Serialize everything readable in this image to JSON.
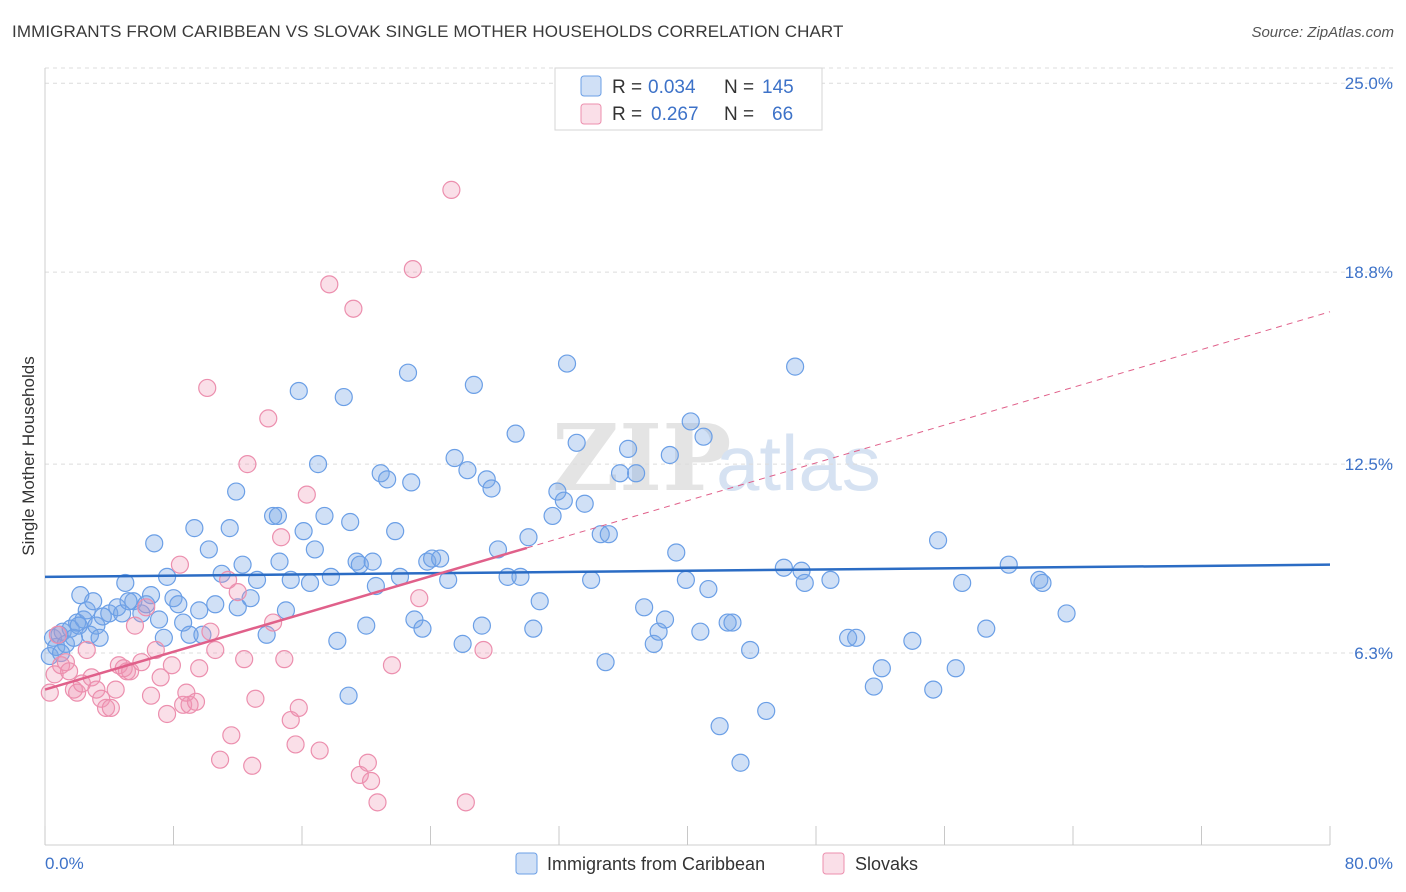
{
  "header": {
    "title": "IMMIGRANTS FROM CARIBBEAN VS SLOVAK SINGLE MOTHER HOUSEHOLDS CORRELATION CHART",
    "source": "Source: ZipAtlas.com"
  },
  "watermark": {
    "zip": "ZIP",
    "atlas": "atlas"
  },
  "legend": {
    "rows": [
      {
        "r_label": "R =",
        "r_value": "0.034",
        "n_label": "N =",
        "n_value": "145",
        "color": "#6b9fe6"
      },
      {
        "r_label": "R =",
        "r_value": "0.267",
        "n_label": "N =",
        "n_value": "66",
        "color": "#ec8fae"
      }
    ]
  },
  "bottom_legend": {
    "items": [
      {
        "label": "Immigrants from Caribbean",
        "color": "#6b9fe6"
      },
      {
        "label": "Slovaks",
        "color": "#ec8fae"
      }
    ]
  },
  "colors": {
    "blue_fill": "rgba(120,165,230,0.35)",
    "blue_stroke": "#6b9fe6",
    "blue_line": "#2b6cc4",
    "pink_fill": "rgba(240,150,180,0.30)",
    "pink_stroke": "#ec8fae",
    "pink_line": "#e0608a",
    "grid": "#dcdcdc",
    "tick_text": "#3d72c8"
  },
  "chart_data": {
    "type": "scatter",
    "title": "IMMIGRANTS FROM CARIBBEAN VS SLOVAK SINGLE MOTHER HOUSEHOLDS CORRELATION CHART",
    "xlabel": "",
    "ylabel": "Single Mother Households",
    "xlim": [
      0,
      80
    ],
    "ylim": [
      0,
      25.5
    ],
    "x_tick_labels": [
      "0.0%",
      "80.0%"
    ],
    "y_ticks": [
      6.3,
      12.5,
      18.8,
      25.0
    ],
    "y_tick_labels": [
      "6.3%",
      "12.5%",
      "18.8%",
      "25.0%"
    ],
    "grid": true,
    "legend_position": "top-center",
    "series": [
      {
        "name": "Immigrants from Caribbean",
        "trend": {
          "x": [
            0,
            80
          ],
          "y": [
            8.8,
            9.2
          ],
          "style": "solid"
        },
        "points": [
          [
            0.3,
            6.2
          ],
          [
            0.5,
            6.8
          ],
          [
            0.7,
            6.5
          ],
          [
            0.9,
            6.9
          ],
          [
            1.1,
            7.0
          ],
          [
            1.3,
            6.6
          ],
          [
            1.6,
            7.1
          ],
          [
            1.8,
            6.8
          ],
          [
            2.0,
            7.3
          ],
          [
            2.2,
            8.2
          ],
          [
            2.4,
            7.4
          ],
          [
            2.6,
            7.7
          ],
          [
            2.8,
            6.9
          ],
          [
            3.0,
            8.0
          ],
          [
            3.2,
            7.2
          ],
          [
            3.4,
            6.8
          ],
          [
            4.0,
            7.6
          ],
          [
            4.5,
            7.8
          ],
          [
            5.0,
            8.6
          ],
          [
            5.5,
            8.0
          ],
          [
            6.0,
            7.6
          ],
          [
            6.3,
            7.9
          ],
          [
            6.8,
            9.9
          ],
          [
            7.1,
            7.4
          ],
          [
            7.4,
            6.8
          ],
          [
            7.6,
            8.8
          ],
          [
            8.0,
            8.1
          ],
          [
            8.3,
            7.9
          ],
          [
            8.6,
            7.3
          ],
          [
            9.0,
            6.9
          ],
          [
            9.3,
            10.4
          ],
          [
            9.6,
            7.7
          ],
          [
            10.2,
            9.7
          ],
          [
            10.6,
            7.9
          ],
          [
            11.0,
            8.9
          ],
          [
            11.5,
            10.4
          ],
          [
            11.9,
            11.6
          ],
          [
            12.3,
            9.2
          ],
          [
            12.8,
            8.1
          ],
          [
            13.2,
            8.7
          ],
          [
            13.8,
            6.9
          ],
          [
            14.2,
            10.8
          ],
          [
            14.6,
            9.3
          ],
          [
            15.0,
            7.7
          ],
          [
            15.3,
            8.7
          ],
          [
            15.8,
            14.9
          ],
          [
            16.1,
            10.3
          ],
          [
            16.5,
            8.6
          ],
          [
            17.0,
            12.5
          ],
          [
            17.4,
            10.8
          ],
          [
            17.8,
            8.8
          ],
          [
            18.2,
            6.7
          ],
          [
            18.6,
            14.7
          ],
          [
            19.0,
            10.6
          ],
          [
            19.4,
            9.3
          ],
          [
            19.6,
            9.2
          ],
          [
            20.0,
            7.2
          ],
          [
            20.4,
            9.3
          ],
          [
            20.9,
            12.2
          ],
          [
            21.3,
            12.0
          ],
          [
            21.8,
            10.3
          ],
          [
            22.1,
            8.8
          ],
          [
            22.6,
            15.5
          ],
          [
            23.0,
            7.4
          ],
          [
            23.5,
            7.1
          ],
          [
            23.8,
            9.3
          ],
          [
            24.1,
            9.4
          ],
          [
            24.6,
            9.4
          ],
          [
            25.1,
            8.7
          ],
          [
            25.5,
            12.7
          ],
          [
            26.0,
            6.6
          ],
          [
            26.3,
            12.3
          ],
          [
            26.7,
            15.1
          ],
          [
            27.2,
            7.2
          ],
          [
            27.5,
            12.0
          ],
          [
            27.8,
            11.7
          ],
          [
            28.2,
            9.7
          ],
          [
            28.8,
            8.8
          ],
          [
            29.3,
            13.5
          ],
          [
            29.6,
            8.8
          ],
          [
            30.1,
            10.1
          ],
          [
            30.4,
            7.1
          ],
          [
            30.8,
            8.0
          ],
          [
            31.6,
            10.8
          ],
          [
            31.9,
            11.6
          ],
          [
            32.3,
            11.3
          ],
          [
            32.5,
            15.8
          ],
          [
            33.1,
            13.2
          ],
          [
            33.6,
            11.2
          ],
          [
            34.0,
            8.7
          ],
          [
            34.6,
            10.2
          ],
          [
            34.9,
            6.0
          ],
          [
            35.1,
            10.2
          ],
          [
            35.8,
            12.2
          ],
          [
            36.3,
            13.0
          ],
          [
            36.8,
            12.2
          ],
          [
            37.3,
            7.8
          ],
          [
            37.9,
            6.6
          ],
          [
            38.2,
            7.0
          ],
          [
            38.6,
            7.4
          ],
          [
            38.9,
            12.8
          ],
          [
            39.3,
            9.6
          ],
          [
            39.9,
            8.7
          ],
          [
            40.2,
            13.9
          ],
          [
            40.8,
            7.0
          ],
          [
            41.0,
            13.4
          ],
          [
            41.3,
            8.4
          ],
          [
            42.0,
            3.9
          ],
          [
            42.5,
            7.3
          ],
          [
            42.8,
            7.3
          ],
          [
            43.3,
            2.7
          ],
          [
            43.9,
            6.4
          ],
          [
            44.9,
            4.4
          ],
          [
            46.0,
            9.1
          ],
          [
            46.7,
            15.7
          ],
          [
            47.1,
            9.0
          ],
          [
            47.3,
            8.6
          ],
          [
            48.9,
            8.7
          ],
          [
            50.0,
            6.8
          ],
          [
            50.5,
            6.8
          ],
          [
            51.6,
            5.2
          ],
          [
            52.1,
            5.8
          ],
          [
            54.0,
            6.7
          ],
          [
            55.3,
            5.1
          ],
          [
            55.6,
            10.0
          ],
          [
            56.7,
            5.8
          ],
          [
            57.1,
            8.6
          ],
          [
            58.6,
            7.1
          ],
          [
            60.0,
            9.2
          ],
          [
            61.9,
            8.7
          ],
          [
            62.1,
            8.6
          ],
          [
            63.6,
            7.6
          ],
          [
            1.0,
            6.3
          ],
          [
            2.1,
            7.2
          ],
          [
            3.6,
            7.5
          ],
          [
            4.8,
            7.6
          ],
          [
            5.2,
            8.0
          ],
          [
            6.6,
            8.2
          ],
          [
            9.8,
            6.9
          ],
          [
            12.0,
            7.8
          ],
          [
            14.5,
            10.8
          ],
          [
            16.8,
            9.7
          ],
          [
            20.6,
            8.5
          ],
          [
            22.8,
            11.9
          ],
          [
            18.9,
            4.9
          ]
        ]
      },
      {
        "name": "Slovaks",
        "trend": {
          "x": [
            0,
            80
          ],
          "y": [
            5.1,
            17.5
          ],
          "solid_until_x": 30,
          "style": "solid-then-dashed"
        },
        "points": [
          [
            0.3,
            5.0
          ],
          [
            0.6,
            5.6
          ],
          [
            0.8,
            6.9
          ],
          [
            1.0,
            5.9
          ],
          [
            1.3,
            6.0
          ],
          [
            1.5,
            5.7
          ],
          [
            1.8,
            5.1
          ],
          [
            2.0,
            5.0
          ],
          [
            2.3,
            5.3
          ],
          [
            2.6,
            6.4
          ],
          [
            2.9,
            5.5
          ],
          [
            3.2,
            5.1
          ],
          [
            3.5,
            4.8
          ],
          [
            3.8,
            4.5
          ],
          [
            4.1,
            4.5
          ],
          [
            4.4,
            5.1
          ],
          [
            4.6,
            5.9
          ],
          [
            4.9,
            5.8
          ],
          [
            5.1,
            5.7
          ],
          [
            5.3,
            5.7
          ],
          [
            5.6,
            7.2
          ],
          [
            6.0,
            6.0
          ],
          [
            6.3,
            7.8
          ],
          [
            6.6,
            4.9
          ],
          [
            6.9,
            6.4
          ],
          [
            7.2,
            5.5
          ],
          [
            7.6,
            4.3
          ],
          [
            7.9,
            5.9
          ],
          [
            8.4,
            9.2
          ],
          [
            8.6,
            4.6
          ],
          [
            8.8,
            5.0
          ],
          [
            9.0,
            4.6
          ],
          [
            9.4,
            4.7
          ],
          [
            9.6,
            5.8
          ],
          [
            10.1,
            15.0
          ],
          [
            10.3,
            7.0
          ],
          [
            10.6,
            6.4
          ],
          [
            10.9,
            2.8
          ],
          [
            11.4,
            8.7
          ],
          [
            11.6,
            3.6
          ],
          [
            12.0,
            8.3
          ],
          [
            12.4,
            6.1
          ],
          [
            12.6,
            12.5
          ],
          [
            12.9,
            2.6
          ],
          [
            13.1,
            4.8
          ],
          [
            13.9,
            14.0
          ],
          [
            14.2,
            7.3
          ],
          [
            14.7,
            10.1
          ],
          [
            14.9,
            6.1
          ],
          [
            15.3,
            4.1
          ],
          [
            15.6,
            3.3
          ],
          [
            15.8,
            4.5
          ],
          [
            16.3,
            11.5
          ],
          [
            17.1,
            3.1
          ],
          [
            17.7,
            18.4
          ],
          [
            19.2,
            17.6
          ],
          [
            19.6,
            2.3
          ],
          [
            20.1,
            2.7
          ],
          [
            20.3,
            2.1
          ],
          [
            20.7,
            1.4
          ],
          [
            21.6,
            5.9
          ],
          [
            22.9,
            18.9
          ],
          [
            23.3,
            8.1
          ],
          [
            25.3,
            21.5
          ],
          [
            26.2,
            1.4
          ],
          [
            27.3,
            6.4
          ]
        ]
      }
    ]
  }
}
